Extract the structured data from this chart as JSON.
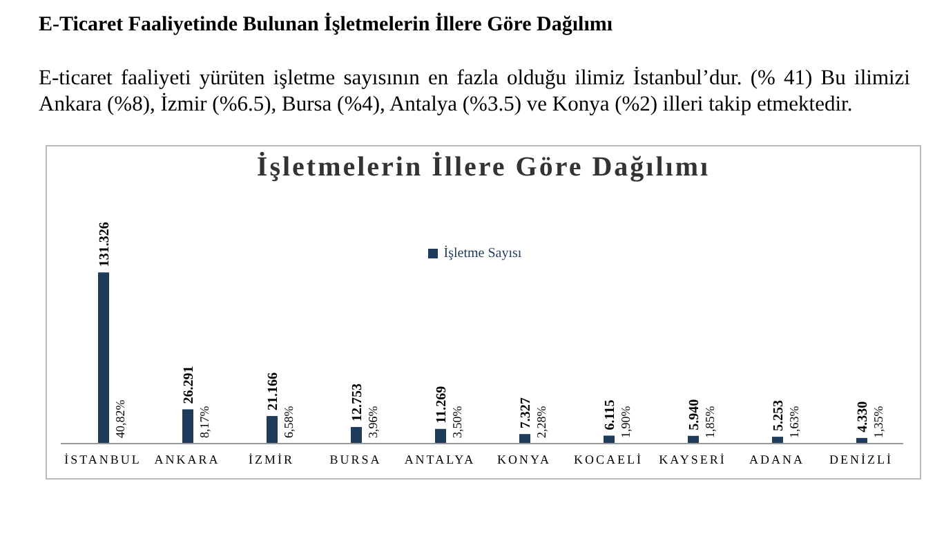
{
  "chart_data": {
    "type": "bar",
    "title": "İşletmelerin İllere Göre Dağılımı",
    "categories": [
      "İSTANBUL",
      "ANKARA",
      "İZMİR",
      "BURSA",
      "ANTALYA",
      "KONYA",
      "KOCAELİ",
      "KAYSERİ",
      "ADANA",
      "DENİZLİ"
    ],
    "series": [
      {
        "name": "İşletme Sayısı",
        "color": "#1f3b5c",
        "values": [
          131326,
          26291,
          21166,
          12753,
          11269,
          7327,
          6115,
          5940,
          5253,
          4330
        ],
        "value_labels": [
          "131.326",
          "26.291",
          "21.166",
          "12.753",
          "11.269",
          "7.327",
          "6.115",
          "5.940",
          "5.253",
          "4.330"
        ]
      }
    ],
    "legend": "top",
    "annotations": [
      "E-Ticaret Faaliyetinde Bulunan İşletmelerin İllere Göre Dağılımı",
      "E-ticaret faaliyeti yürüten işletme sayısının en fazla olduğu ilimiz İstanbul’dur. (% 41) Bu ilimizi Ankara (%8), İzmir (%6.5), Bursa (%4), Antalya (%3.5) ve Konya (%2) illeri takip etmektedir.",
      "40,82%",
      "8,17%",
      "6,58%",
      "3,96%",
      "3,50%",
      "2,28%",
      "1,90%",
      "1,85%",
      "1,63%",
      "1,35%"
    ]
  }
}
